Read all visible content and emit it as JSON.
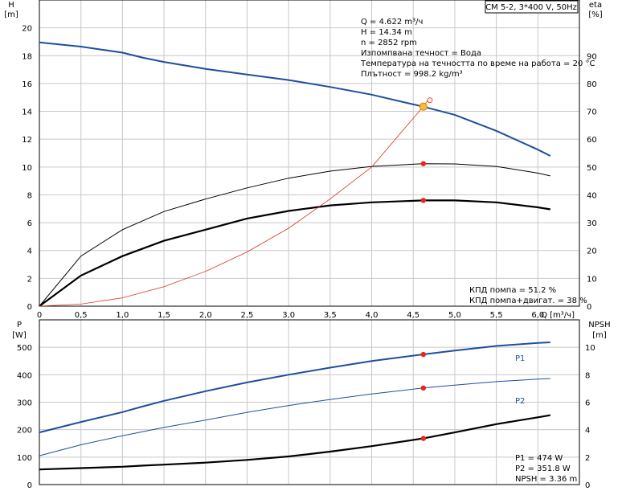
{
  "chart_data": [
    {
      "type": "line",
      "title": "CM 5-2, 3*400 V, 50Hz",
      "xlabel": "Q [m³/ч]",
      "ylabel": "H",
      "ylabel_unit": "[m]",
      "y2label": "eta",
      "y2label_unit": "[%]",
      "xlim": [
        0,
        6.5
      ],
      "ylim": [
        0,
        22
      ],
      "y2lim": [
        0,
        110
      ],
      "xticks": [
        "0",
        "0,5",
        "1,0",
        "1,5",
        "2,0",
        "2,5",
        "3,0",
        "3,5",
        "4,0",
        "4,5",
        "5,0",
        "5,5",
        "6,0"
      ],
      "yticks": [
        "0",
        "2",
        "4",
        "6",
        "8",
        "10",
        "12",
        "14",
        "16",
        "18",
        "20"
      ],
      "y2ticks": [
        "0",
        "10",
        "20",
        "30",
        "40",
        "50",
        "60",
        "70",
        "80",
        "90"
      ],
      "grid": true,
      "series": [
        {
          "axis": "H",
          "color": "#1f4e9c",
          "x": [
            0,
            0.5,
            1.0,
            1.25,
            1.5,
            2.0,
            2.5,
            3.0,
            3.5,
            4.0,
            4.5,
            4.62,
            5.0,
            5.5,
            6.0,
            6.15
          ],
          "y": [
            18.95,
            18.65,
            18.22,
            17.85,
            17.55,
            17.05,
            16.65,
            16.25,
            15.75,
            15.2,
            14.5,
            14.34,
            13.75,
            12.6,
            11.25,
            10.8
          ]
        },
        {
          "axis": "eta",
          "color": "#000000",
          "x": [
            0,
            0.5,
            1.0,
            1.5,
            2.0,
            2.5,
            3.0,
            3.5,
            4.0,
            4.62,
            5.0,
            5.5,
            6.0,
            6.15
          ],
          "y": [
            0,
            18,
            27.5,
            34,
            38.5,
            42.5,
            46,
            48.5,
            50.2,
            51.2,
            51.1,
            50.2,
            47.8,
            46.8
          ]
        },
        {
          "axis": "eta",
          "color": "#000000",
          "x": [
            0,
            0.5,
            1.0,
            1.5,
            2.0,
            2.5,
            3.0,
            3.5,
            4.0,
            4.62,
            5.0,
            5.5,
            6.0,
            6.15
          ],
          "y": [
            0,
            11,
            18,
            23.5,
            27.5,
            31.5,
            34.2,
            36.2,
            37.3,
            38,
            38,
            37.3,
            35.5,
            34.8
          ]
        },
        {
          "axis": "H",
          "color": "#e03020",
          "x": [
            0,
            0.5,
            1.0,
            1.5,
            2.0,
            2.5,
            3.0,
            3.5,
            4.0,
            4.5,
            4.62,
            4.68
          ],
          "y": [
            0,
            0.15,
            0.6,
            1.4,
            2.5,
            3.9,
            5.6,
            7.7,
            10.0,
            13.5,
            14.34,
            14.8
          ]
        }
      ],
      "operating_point": {
        "x": 4.622,
        "H": 14.34,
        "eta_pump": 51.2,
        "eta_total": 38
      },
      "info_lines": [
        "Q = 4.622 m³/ч",
        "H = 14.34 m",
        "n = 2852 rpm",
        "Изпомпвана течност = Вода",
        "Температура на течността по време на работа = 20 °C",
        "Плътност = 998.2 kg/m³"
      ],
      "eff_lines": [
        "КПД помпа = 51.2 %",
        "КПД помпа+двигат. = 38 %"
      ]
    },
    {
      "type": "line",
      "ylabel": "P",
      "ylabel_unit": "[W]",
      "y2label": "NPSH",
      "y2label_unit": "[m]",
      "xlim": [
        0,
        6.5
      ],
      "ylim": [
        0,
        600
      ],
      "y2lim": [
        0,
        12
      ],
      "yticks": [
        "0",
        "100",
        "200",
        "300",
        "400",
        "500"
      ],
      "y2ticks": [
        "0",
        "2",
        "4",
        "6",
        "8",
        "10"
      ],
      "grid": true,
      "series": [
        {
          "name": "P1",
          "axis": "P",
          "color": "#1f4e9c",
          "x": [
            0,
            0.5,
            1.0,
            1.25,
            1.5,
            2.0,
            2.5,
            3.0,
            3.5,
            4.0,
            4.62,
            5.0,
            5.5,
            6.0,
            6.15
          ],
          "y": [
            190,
            228,
            264,
            285,
            305,
            340,
            372,
            400,
            426,
            450,
            474,
            488,
            505,
            516,
            518
          ]
        },
        {
          "name": "P2",
          "axis": "P",
          "color": "#1f4e9c",
          "x": [
            0,
            0.5,
            1.0,
            1.5,
            2.0,
            2.5,
            3.0,
            3.5,
            4.0,
            4.62,
            5.0,
            5.5,
            6.0,
            6.15
          ],
          "y": [
            105,
            145,
            178,
            208,
            235,
            263,
            288,
            310,
            330,
            351.8,
            362,
            375,
            384,
            386
          ]
        },
        {
          "name": "NPSH",
          "axis": "NPSH",
          "color": "#000000",
          "x": [
            0,
            0.5,
            1.0,
            1.25,
            1.5,
            2.0,
            2.5,
            3.0,
            3.5,
            4.0,
            4.62,
            5.0,
            5.5,
            6.0,
            6.15
          ],
          "y": [
            1.1,
            1.2,
            1.3,
            1.38,
            1.45,
            1.6,
            1.8,
            2.05,
            2.4,
            2.8,
            3.36,
            3.8,
            4.4,
            4.9,
            5.05
          ]
        }
      ],
      "operating_point": {
        "x": 4.622,
        "P1": 474,
        "P2": 351.8,
        "NPSH": 3.36
      },
      "readout_lines": [
        "P1 = 474 W",
        "P2 = 351.8 W",
        "NPSH = 3.36 m"
      ]
    }
  ]
}
